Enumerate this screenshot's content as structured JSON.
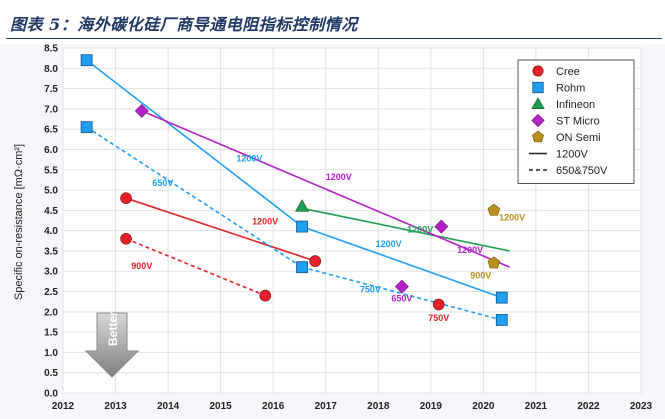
{
  "title": "图表 5：海外碳化硅厂商导通电阻指标控制情况",
  "chart_data": {
    "type": "scatter",
    "title": "图表 5：海外碳化硅厂商导通电阻指标控制情况",
    "xlabel": "",
    "ylabel": "Specific on-resistance [mΩ·cm²]",
    "xlim": [
      2012,
      2023
    ],
    "ylim": [
      0,
      8.5
    ],
    "x_ticks": [
      "2012",
      "2013",
      "2014",
      "2015",
      "2016",
      "2017",
      "2018",
      "2019",
      "2020",
      "2021",
      "2022",
      "2023"
    ],
    "y_ticks": [
      "0.0",
      "0.5",
      "1.0",
      "1.5",
      "2.0",
      "2.5",
      "3.0",
      "3.5",
      "4.0",
      "4.5",
      "5.0",
      "5.5",
      "6.0",
      "6.5",
      "7.0",
      "7.5",
      "8.0",
      "8.5"
    ],
    "grid": true,
    "legend_position": "top-right",
    "series": [
      {
        "name": "Cree",
        "marker": "circle",
        "color": "#e8202a",
        "points": [
          {
            "x": 2013.2,
            "y": 4.8
          },
          {
            "x": 2013.2,
            "y": 3.8
          },
          {
            "x": 2016.8,
            "y": 3.25
          },
          {
            "x": 2015.85,
            "y": 2.4
          },
          {
            "x": 2019.15,
            "y": 2.18
          }
        ]
      },
      {
        "name": "Rohm",
        "marker": "square",
        "color": "#1e9ff2",
        "points": [
          {
            "x": 2012.45,
            "y": 8.2
          },
          {
            "x": 2012.45,
            "y": 6.55
          },
          {
            "x": 2016.55,
            "y": 4.1
          },
          {
            "x": 2016.55,
            "y": 3.1
          },
          {
            "x": 2020.35,
            "y": 2.35
          },
          {
            "x": 2020.35,
            "y": 1.8
          }
        ]
      },
      {
        "name": "Infineon",
        "marker": "triangle",
        "color": "#1e9e50",
        "points": [
          {
            "x": 2016.55,
            "y": 4.6
          }
        ]
      },
      {
        "name": "ST Micro",
        "marker": "diamond",
        "color": "#b521c9",
        "points": [
          {
            "x": 2013.5,
            "y": 6.95
          },
          {
            "x": 2019.2,
            "y": 4.1
          },
          {
            "x": 2018.45,
            "y": 2.62
          }
        ]
      },
      {
        "name": "ON Semi",
        "marker": "pentagon",
        "color": "#b8901a",
        "points": [
          {
            "x": 2020.2,
            "y": 4.5
          },
          {
            "x": 2020.2,
            "y": 3.2
          }
        ]
      }
    ],
    "trend_lines": [
      {
        "vendor": "Cree",
        "rating": "1200V",
        "style": "solid",
        "color": "#e8202a",
        "from": [
          2013.2,
          4.8
        ],
        "to": [
          2016.8,
          3.25
        ]
      },
      {
        "vendor": "Cree",
        "rating": "900V",
        "style": "dashed",
        "color": "#e8202a",
        "from": [
          2013.2,
          3.8
        ],
        "to": [
          2015.85,
          2.4
        ]
      },
      {
        "vendor": "Rohm",
        "rating": "1200V",
        "style": "solid",
        "color": "#1e9ff2",
        "from": [
          2012.45,
          8.2
        ],
        "to": [
          2016.55,
          4.1
        ]
      },
      {
        "vendor": "Rohm",
        "rating": "1200V",
        "style": "solid",
        "color": "#1e9ff2",
        "from": [
          2016.55,
          4.1
        ],
        "to": [
          2020.35,
          2.35
        ]
      },
      {
        "vendor": "Rohm",
        "rating": "650V",
        "style": "dashed",
        "color": "#1e9ff2",
        "from": [
          2012.45,
          6.55
        ],
        "to": [
          2016.55,
          3.1
        ]
      },
      {
        "vendor": "Rohm",
        "rating": "750V",
        "style": "dashed",
        "color": "#1e9ff2",
        "from": [
          2016.55,
          3.1
        ],
        "to": [
          2020.35,
          1.8
        ]
      },
      {
        "vendor": "Infineon",
        "rating": "1200V",
        "style": "solid",
        "color": "#1e9e50",
        "from": [
          2016.55,
          4.55
        ],
        "to": [
          2020.5,
          3.5
        ]
      },
      {
        "vendor": "ST Micro",
        "rating": "1200V",
        "style": "solid",
        "color": "#b521c9",
        "from": [
          2013.5,
          6.95
        ],
        "to": [
          2020.5,
          3.1
        ]
      }
    ],
    "annotations": [
      {
        "text": "1200V",
        "x": 2015.3,
        "y": 5.7,
        "color": "#1e9ff2"
      },
      {
        "text": "650V",
        "x": 2013.7,
        "y": 5.1,
        "color": "#1e9ff2"
      },
      {
        "text": "1200V",
        "x": 2015.6,
        "y": 4.15,
        "color": "#e8202a"
      },
      {
        "text": "900V",
        "x": 2013.3,
        "y": 3.05,
        "color": "#e8202a"
      },
      {
        "text": "1200V",
        "x": 2017.0,
        "y": 5.25,
        "color": "#b521c9"
      },
      {
        "text": "1200V",
        "x": 2018.55,
        "y": 3.95,
        "color": "#1e9e50"
      },
      {
        "text": "1200V",
        "x": 2017.95,
        "y": 3.6,
        "color": "#1e9ff2"
      },
      {
        "text": "750V",
        "x": 2017.65,
        "y": 2.48,
        "color": "#1e9ff2"
      },
      {
        "text": "650V",
        "x": 2018.25,
        "y": 2.25,
        "color": "#b521c9"
      },
      {
        "text": "750V",
        "x": 2018.95,
        "y": 1.78,
        "color": "#e8202a"
      },
      {
        "text": "1200V",
        "x": 2019.5,
        "y": 3.45,
        "color": "#b521c9"
      },
      {
        "text": "900V",
        "x": 2019.75,
        "y": 2.82,
        "color": "#b8901a"
      },
      {
        "text": "1200V",
        "x": 2020.3,
        "y": 4.25,
        "color": "#b8901a"
      }
    ],
    "legend": [
      {
        "label": "Cree",
        "symbol": "circle",
        "color": "#e8202a"
      },
      {
        "label": "Rohm",
        "symbol": "square",
        "color": "#1e9ff2"
      },
      {
        "label": "Infineon",
        "symbol": "triangle",
        "color": "#1e9e50"
      },
      {
        "label": "ST Micro",
        "symbol": "diamond",
        "color": "#b521c9"
      },
      {
        "label": "ON Semi",
        "symbol": "pentagon",
        "color": "#b8901a"
      },
      {
        "label": "1200V",
        "symbol": "solid-line",
        "color": "#222222"
      },
      {
        "label": "650&750V",
        "symbol": "dashed-line",
        "color": "#222222"
      }
    ],
    "better_label": "Better"
  }
}
